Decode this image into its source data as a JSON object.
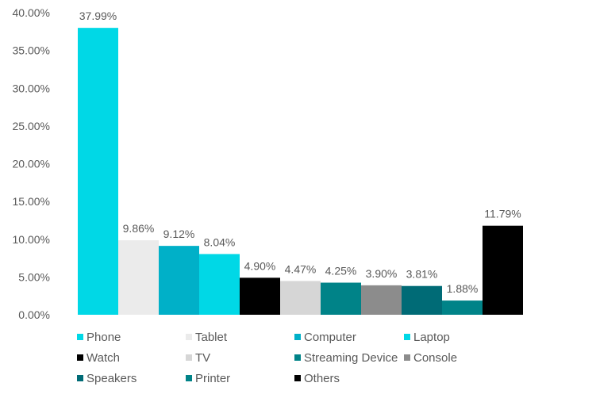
{
  "chart_data": {
    "type": "bar",
    "categories": [
      "Phone",
      "Tablet",
      "Computer",
      "Laptop",
      "Watch",
      "TV",
      "Streaming Device",
      "Console",
      "Speakers",
      "Printer",
      "Others"
    ],
    "values": [
      37.99,
      9.86,
      9.12,
      8.04,
      4.9,
      4.47,
      4.25,
      3.9,
      3.81,
      1.88,
      11.79
    ],
    "data_labels": [
      "37.99%",
      "9.86%",
      "9.12%",
      "8.04%",
      "4.90%",
      "4.47%",
      "4.25%",
      "3.90%",
      "3.81%",
      "1.88%",
      "11.79%"
    ],
    "colors": [
      "#00D8E6",
      "#EBEBEB",
      "#00B0C8",
      "#00D8E6",
      "#000000",
      "#D6D6D6",
      "#008388",
      "#8C8C8C",
      "#006B76",
      "#008388",
      "#000000"
    ],
    "ylim": [
      0,
      40
    ],
    "yticks": [
      0,
      5,
      10,
      15,
      20,
      25,
      30,
      35,
      40
    ],
    "ytick_labels": [
      "0.00%",
      "5.00%",
      "10.00%",
      "15.00%",
      "20.00%",
      "25.00%",
      "30.00%",
      "35.00%",
      "40.00%"
    ],
    "grid": false,
    "legend": "bottom",
    "title": "",
    "xlabel": "",
    "ylabel": ""
  }
}
